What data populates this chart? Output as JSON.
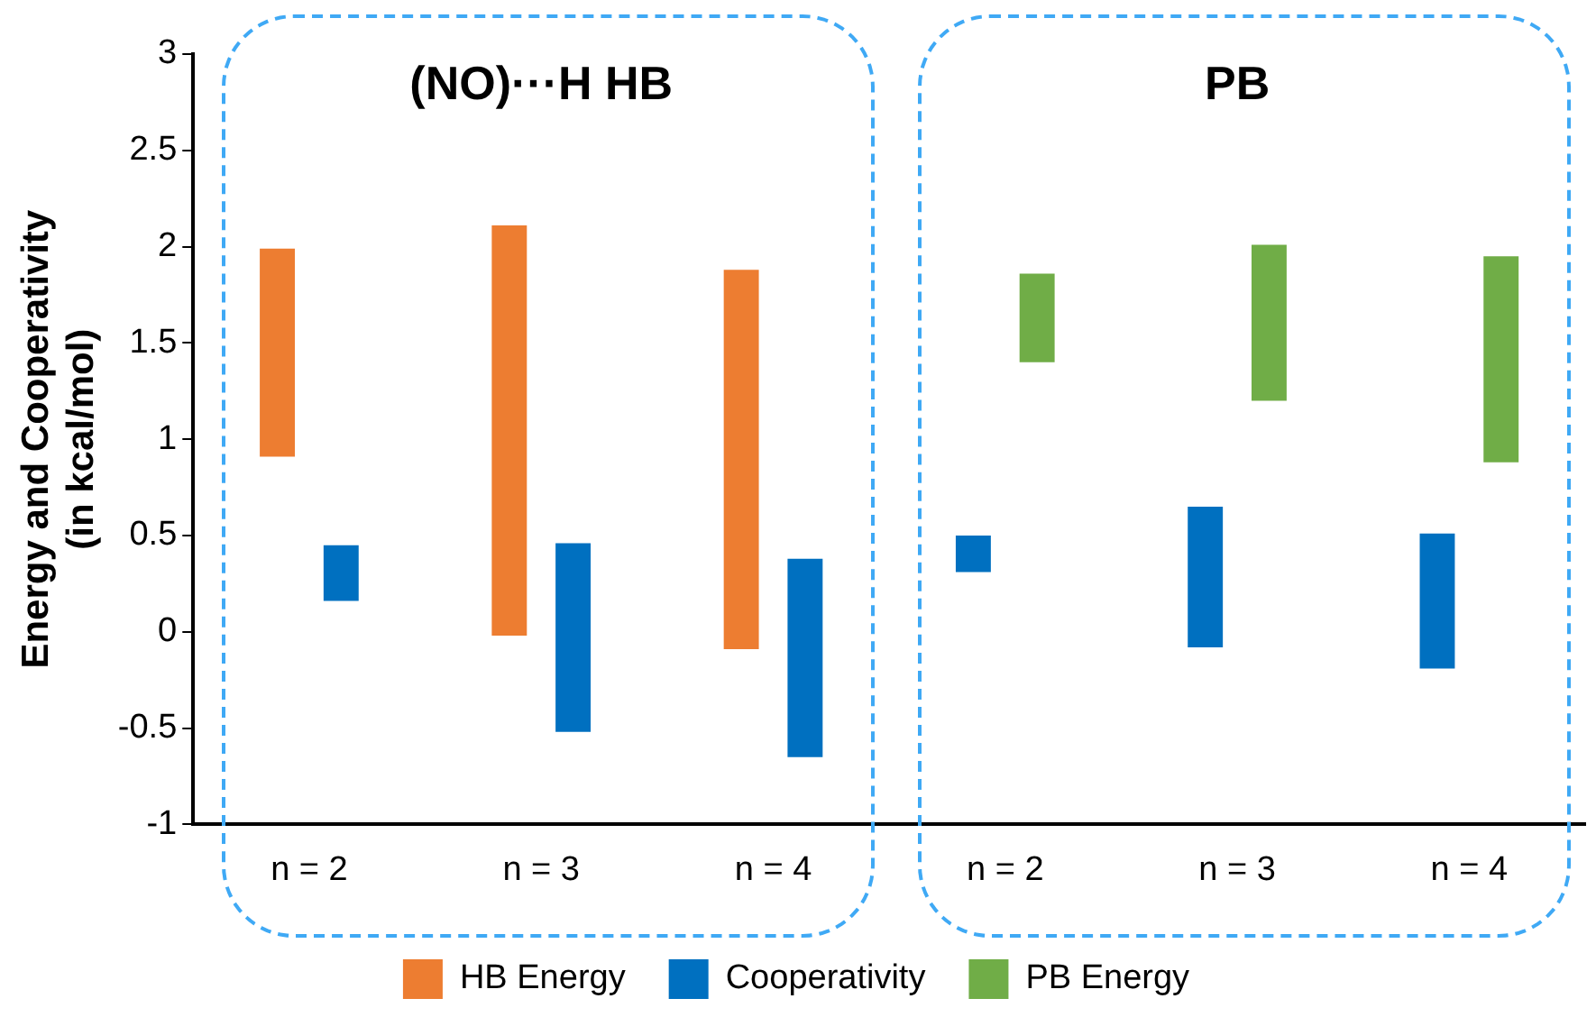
{
  "chart_data": {
    "type": "bar",
    "categories": [
      "n = 2",
      "n = 3",
      "n = 4",
      "n = 2",
      "n = 3",
      "n = 4"
    ],
    "ylabel": "Energy and Cooperativity (in kcal/mol)",
    "annotations": [
      "(NO)···H HB",
      "PB"
    ],
    "series": [
      {
        "name": "HB Energy",
        "color": "#ed7d31",
        "base": [
          0.91,
          -0.02,
          -0.09,
          null,
          null,
          null
        ],
        "values": [
          1.08,
          2.13,
          1.97,
          null,
          null,
          null
        ]
      },
      {
        "name": "Cooperativity",
        "color": "#0070c0",
        "base": [
          0.16,
          -0.52,
          -0.65,
          0.31,
          -0.08,
          -0.19
        ],
        "values": [
          0.29,
          0.98,
          1.03,
          0.19,
          0.73,
          0.7
        ]
      },
      {
        "name": "PB Energy",
        "color": "#70ad47",
        "base": [
          null,
          null,
          null,
          1.4,
          1.2,
          0.88
        ],
        "values": [
          null,
          null,
          null,
          0.46,
          0.81,
          1.07
        ]
      }
    ],
    "ylim": [
      -1,
      3
    ],
    "yticks": [
      -1,
      -0.5,
      0,
      0.5,
      1,
      1.5,
      2,
      2.5,
      3
    ],
    "grid": false,
    "legend": "bottom"
  }
}
